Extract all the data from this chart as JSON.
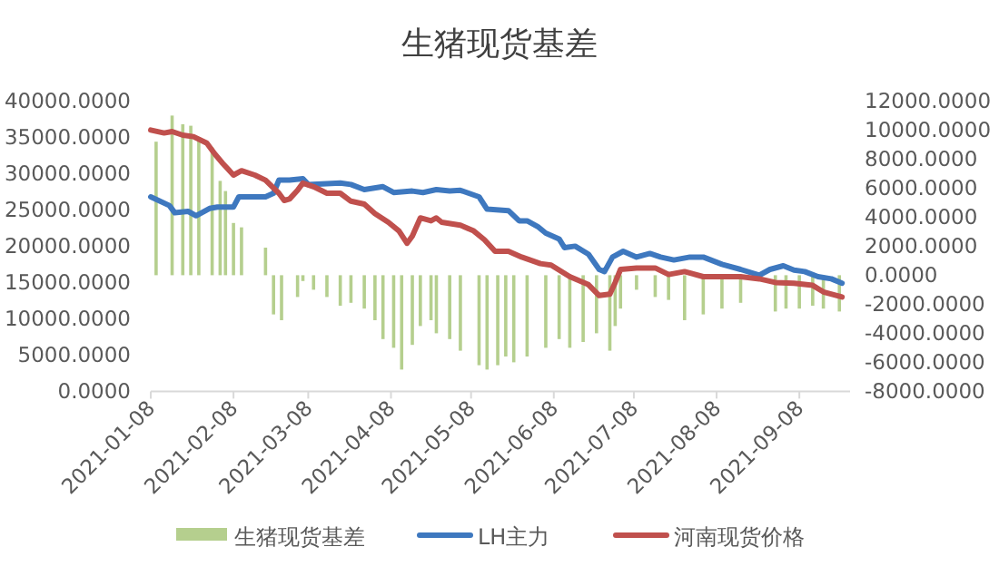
{
  "chart_data": {
    "type": "line",
    "title": "生猪现货基差",
    "xlim": [
      "2021-01-08",
      "2021-09-27"
    ],
    "xticks": [
      "2021-01-08",
      "2021-02-08",
      "2021-03-08",
      "2021-04-08",
      "2021-05-08",
      "2021-06-08",
      "2021-07-08",
      "2021-08-08",
      "2021-09-08"
    ],
    "ylim": [
      0,
      40000
    ],
    "yticks": [
      {
        "value": 0,
        "label": "0.0000"
      },
      {
        "value": 5000,
        "label": "5000.0000"
      },
      {
        "value": 10000,
        "label": "10000.0000"
      },
      {
        "value": 15000,
        "label": "15000.0000"
      },
      {
        "value": 20000,
        "label": "20000.0000"
      },
      {
        "value": 25000,
        "label": "25000.0000"
      },
      {
        "value": 30000,
        "label": "30000.0000"
      },
      {
        "value": 35000,
        "label": "35000.0000"
      },
      {
        "value": 40000,
        "label": "40000.0000"
      }
    ],
    "y2lim": [
      -8000,
      12000
    ],
    "y2ticks": [
      {
        "value": -8000,
        "label": "-8000.0000"
      },
      {
        "value": -6000,
        "label": "-6000.0000"
      },
      {
        "value": -4000,
        "label": "-4000.0000"
      },
      {
        "value": -2000,
        "label": "-2000.0000"
      },
      {
        "value": 0,
        "label": "0.0000"
      },
      {
        "value": 2000,
        "label": "2000.0000"
      },
      {
        "value": 4000,
        "label": "4000.0000"
      },
      {
        "value": 6000,
        "label": "6000.0000"
      },
      {
        "value": 8000,
        "label": "8000.0000"
      },
      {
        "value": 10000,
        "label": "10000.0000"
      },
      {
        "value": 12000,
        "label": "12000.0000"
      }
    ],
    "legend": "bottom",
    "series": [
      {
        "name": "生猪现货基差",
        "type": "bar",
        "axis": "y2",
        "color": "#b5cf8e",
        "x": [
          "2021-01-10",
          "2021-01-16",
          "2021-01-20",
          "2021-01-23",
          "2021-01-26",
          "2021-01-31",
          "2021-02-03",
          "2021-02-05",
          "2021-02-08",
          "2021-02-11",
          "2021-02-20",
          "2021-02-23",
          "2021-02-26",
          "2021-03-04",
          "2021-03-06",
          "2021-03-10",
          "2021-03-15",
          "2021-03-20",
          "2021-03-24",
          "2021-03-29",
          "2021-04-02",
          "2021-04-05",
          "2021-04-09",
          "2021-04-12",
          "2021-04-16",
          "2021-04-19",
          "2021-04-23",
          "2021-04-25",
          "2021-04-30",
          "2021-05-04",
          "2021-05-11",
          "2021-05-14",
          "2021-05-18",
          "2021-05-21",
          "2021-05-24",
          "2021-05-29",
          "2021-06-05",
          "2021-06-10",
          "2021-06-14",
          "2021-06-19",
          "2021-06-24",
          "2021-06-29",
          "2021-07-01",
          "2021-07-03",
          "2021-07-09",
          "2021-07-16",
          "2021-07-21",
          "2021-07-27",
          "2021-08-03",
          "2021-08-10",
          "2021-08-17",
          "2021-08-30",
          "2021-09-03",
          "2021-09-08",
          "2021-09-13",
          "2021-09-17",
          "2021-09-23"
        ],
        "values": [
          9200,
          11000,
          10400,
          10300,
          9400,
          8800,
          6500,
          5800,
          3600,
          3300,
          1900,
          -2700,
          -3100,
          -1500,
          -400,
          -1000,
          -1500,
          -2100,
          -1900,
          -2300,
          -3100,
          -4400,
          -5000,
          -6500,
          -4800,
          -3500,
          -3100,
          -4000,
          -4400,
          -5200,
          -6200,
          -6500,
          -6200,
          -5600,
          -6000,
          -5600,
          -5000,
          -4400,
          -5000,
          -4600,
          -4000,
          -5200,
          -3500,
          -2300,
          -1000,
          -1500,
          -1700,
          -3100,
          -2700,
          -2300,
          -1900,
          -2500,
          -2300,
          -2300,
          -2100,
          -2300,
          -2500
        ]
      },
      {
        "name": "LH主力",
        "color": "#3e78bf",
        "x": [
          "2021-01-08",
          "2021-01-15",
          "2021-01-17",
          "2021-01-22",
          "2021-01-25",
          "2021-01-30",
          "2021-02-02",
          "2021-02-08",
          "2021-02-10",
          "2021-02-20",
          "2021-02-23",
          "2021-02-25",
          "2021-03-01",
          "2021-03-06",
          "2021-03-08",
          "2021-03-20",
          "2021-03-24",
          "2021-03-29",
          "2021-04-05",
          "2021-04-09",
          "2021-04-16",
          "2021-04-20",
          "2021-04-25",
          "2021-04-30",
          "2021-05-04",
          "2021-05-11",
          "2021-05-14",
          "2021-05-22",
          "2021-05-26",
          "2021-05-29",
          "2021-06-02",
          "2021-06-05",
          "2021-06-10",
          "2021-06-12",
          "2021-06-16",
          "2021-06-21",
          "2021-06-25",
          "2021-06-27",
          "2021-06-30",
          "2021-07-04",
          "2021-07-09",
          "2021-07-14",
          "2021-07-18",
          "2021-07-23",
          "2021-07-29",
          "2021-08-03",
          "2021-08-10",
          "2021-08-17",
          "2021-08-24",
          "2021-08-28",
          "2021-09-02",
          "2021-09-06",
          "2021-09-10",
          "2021-09-15",
          "2021-09-20",
          "2021-09-24"
        ],
        "values": [
          26800,
          25600,
          24600,
          24800,
          24200,
          25200,
          25400,
          25400,
          26800,
          26800,
          27300,
          29100,
          29100,
          29300,
          28500,
          28700,
          28500,
          27800,
          28200,
          27400,
          27600,
          27400,
          27800,
          27600,
          27700,
          26800,
          25100,
          24900,
          23500,
          23500,
          22700,
          21800,
          21000,
          19800,
          20000,
          18900,
          16800,
          16500,
          18500,
          19300,
          18500,
          19000,
          18500,
          18100,
          18500,
          18500,
          17500,
          16800,
          16000,
          16800,
          17300,
          16700,
          16500,
          15800,
          15500,
          14900
        ]
      },
      {
        "name": "河南现货价格",
        "color": "#c0504d",
        "x": [
          "2021-01-08",
          "2021-01-13",
          "2021-01-16",
          "2021-01-20",
          "2021-01-24",
          "2021-01-29",
          "2021-02-01",
          "2021-02-04",
          "2021-02-08",
          "2021-02-11",
          "2021-02-16",
          "2021-02-20",
          "2021-02-25",
          "2021-02-27",
          "2021-03-01",
          "2021-03-04",
          "2021-03-06",
          "2021-03-10",
          "2021-03-15",
          "2021-03-20",
          "2021-03-24",
          "2021-03-29",
          "2021-04-02",
          "2021-04-07",
          "2021-04-11",
          "2021-04-14",
          "2021-04-16",
          "2021-04-19",
          "2021-04-23",
          "2021-04-25",
          "2021-04-27",
          "2021-05-04",
          "2021-05-09",
          "2021-05-13",
          "2021-05-17",
          "2021-05-22",
          "2021-05-27",
          "2021-06-03",
          "2021-06-07",
          "2021-06-14",
          "2021-06-21",
          "2021-06-25",
          "2021-06-29",
          "2021-07-01",
          "2021-07-03",
          "2021-07-09",
          "2021-07-16",
          "2021-07-21",
          "2021-07-27",
          "2021-08-03",
          "2021-08-10",
          "2021-08-17",
          "2021-08-24",
          "2021-08-30",
          "2021-09-06",
          "2021-09-13",
          "2021-09-17",
          "2021-09-24"
        ],
        "values": [
          36000,
          35600,
          35800,
          35300,
          35100,
          34200,
          32700,
          31400,
          29800,
          30400,
          29800,
          29100,
          27300,
          26300,
          26500,
          27700,
          28700,
          28200,
          27300,
          27300,
          26200,
          25800,
          24500,
          23300,
          22100,
          20400,
          21400,
          23900,
          23500,
          23900,
          23300,
          22900,
          22100,
          20900,
          19300,
          19300,
          18500,
          17600,
          17400,
          15800,
          14700,
          13200,
          13400,
          15000,
          16800,
          17000,
          17000,
          16100,
          16500,
          15800,
          15800,
          15800,
          15500,
          15000,
          14900,
          14600,
          13700,
          13000
        ]
      }
    ]
  }
}
